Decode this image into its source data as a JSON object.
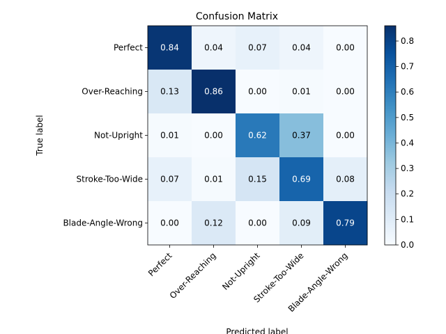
{
  "chart_data": {
    "type": "heatmap",
    "title": "Confusion Matrix",
    "xlabel": "Predicted label",
    "ylabel": "True label",
    "x_categories": [
      "Perfect",
      "Over-Reaching",
      "Not-Upright",
      "Stroke-Too-Wide",
      "Blade-Angle-Wrong"
    ],
    "y_categories": [
      "Perfect",
      "Over-Reaching",
      "Not-Upright",
      "Stroke-Too-Wide",
      "Blade-Angle-Wrong"
    ],
    "values": [
      [
        0.84,
        0.04,
        0.07,
        0.04,
        0.0
      ],
      [
        0.13,
        0.86,
        0.0,
        0.01,
        0.0
      ],
      [
        0.01,
        0.0,
        0.62,
        0.37,
        0.0
      ],
      [
        0.07,
        0.01,
        0.15,
        0.69,
        0.08
      ],
      [
        0.0,
        0.12,
        0.0,
        0.09,
        0.79
      ]
    ],
    "value_labels": [
      [
        "0.84",
        "0.04",
        "0.07",
        "0.04",
        "0.00"
      ],
      [
        "0.13",
        "0.86",
        "0.00",
        "0.01",
        "0.00"
      ],
      [
        "0.01",
        "0.00",
        "0.62",
        "0.37",
        "0.00"
      ],
      [
        "0.07",
        "0.01",
        "0.15",
        "0.69",
        "0.08"
      ],
      [
        "0.00",
        "0.12",
        "0.00",
        "0.09",
        "0.79"
      ]
    ],
    "colormap": "Blues",
    "color_range": [
      0.0,
      0.86
    ],
    "colorbar_ticks": [
      0.0,
      0.1,
      0.2,
      0.3,
      0.4,
      0.5,
      0.6,
      0.7,
      0.8
    ],
    "colorbar_tick_labels": [
      "0.0",
      "0.1",
      "0.2",
      "0.3",
      "0.4",
      "0.5",
      "0.6",
      "0.7",
      "0.8"
    ],
    "grid": false
  }
}
